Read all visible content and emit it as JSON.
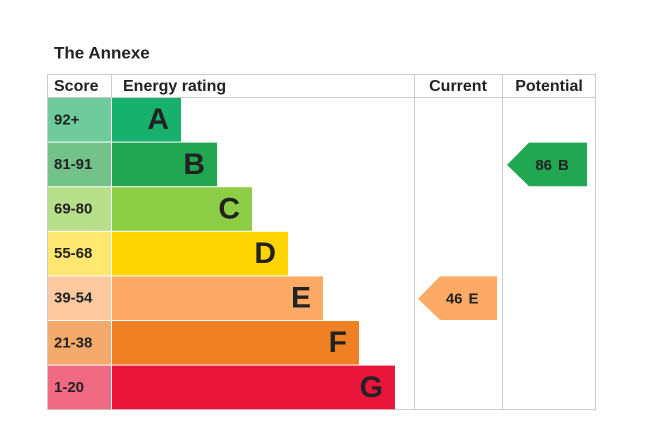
{
  "title": "The Annexe",
  "headers": {
    "score": "Score",
    "rating": "Energy rating",
    "current": "Current",
    "potential": "Potential"
  },
  "bands": [
    {
      "score": "92+",
      "letter": "A",
      "color": "#17b06c",
      "score_color": "#6fcb9c"
    },
    {
      "score": "81-91",
      "letter": "B",
      "color": "#21a651",
      "score_color": "#72c289"
    },
    {
      "score": "69-80",
      "letter": "C",
      "color": "#8dce46",
      "score_color": "#b8e08a"
    },
    {
      "score": "55-68",
      "letter": "D",
      "color": "#ffd500",
      "score_color": "#ffe770"
    },
    {
      "score": "39-54",
      "letter": "E",
      "color": "#fcaa65",
      "score_color": "#fcc9a0"
    },
    {
      "score": "21-38",
      "letter": "F",
      "color": "#ef8023",
      "score_color": "#f4aa6c"
    },
    {
      "score": "1-20",
      "letter": "G",
      "color": "#e9153b",
      "score_color": "#f06a84"
    }
  ],
  "current": {
    "value": 46,
    "letter": "E",
    "color": "#fcaa65"
  },
  "potential": {
    "value": 86,
    "letter": "B",
    "color": "#21a651"
  }
}
